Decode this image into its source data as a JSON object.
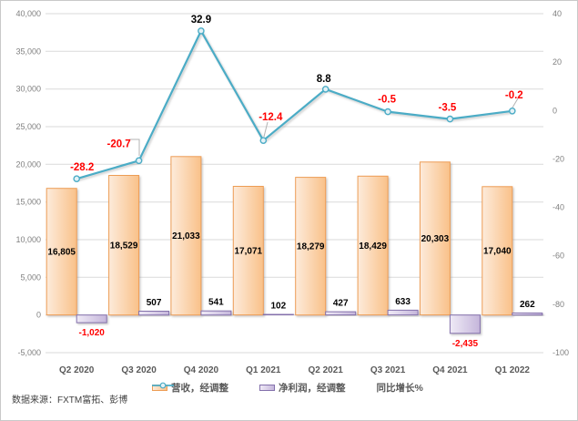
{
  "source": {
    "text": "数据来源：FXTM富拓、彭博"
  },
  "chart_data": {
    "type": "combo",
    "categories": [
      "Q2 2020",
      "Q3 2020",
      "Q4 2020",
      "Q1 2021",
      "Q2 2021",
      "Q3 2021",
      "Q4 2021",
      "Q1 2022"
    ],
    "series": [
      {
        "key": "revenue",
        "name": "营收，经调整",
        "type": "bar",
        "axis": "left",
        "values": [
          16805,
          18529,
          21033,
          17071,
          18279,
          18429,
          20303,
          17040
        ],
        "labels": [
          "16,805",
          "18,529",
          "21,033",
          "17,071",
          "18,279",
          "18,429",
          "20,303",
          "17,040"
        ],
        "fill_from": "#FDEBDB",
        "fill_to": "#F9C189",
        "border": "#ED9D55",
        "label_color": "#000000"
      },
      {
        "key": "net-profit",
        "name": "净利润，经调整",
        "type": "bar",
        "axis": "left",
        "values": [
          -1020,
          507,
          541,
          102,
          427,
          633,
          -2435,
          262
        ],
        "labels": [
          "-1,020",
          "507",
          "541",
          "102",
          "427",
          "633",
          "-2,435",
          "262"
        ],
        "fill_from": "#EFEAF6",
        "fill_to": "#C5B6DB",
        "border": "#8471AC",
        "label_color_positive": "#000000",
        "label_color_negative": "#FF0000"
      },
      {
        "key": "yoy-growth",
        "name": "同比增长%",
        "type": "line",
        "axis": "right",
        "values": [
          -28.2,
          -20.7,
          32.9,
          -12.4,
          8.8,
          -0.5,
          -3.5,
          -0.2
        ],
        "labels": [
          "-28.2",
          "-20.7",
          "32.9",
          "-12.4",
          "8.8",
          "-0.5",
          "-3.5",
          "-0.2"
        ],
        "color": "#4BACC6",
        "marker_fill": "#E3F1F6",
        "label_color_positive": "#000000",
        "label_color_negative": "#FF0000"
      }
    ],
    "left_axis": {
      "max": 40000,
      "min": -5000,
      "step": 5000,
      "ticks": [
        "40,000",
        "35,000",
        "30,000",
        "25,000",
        "20,000",
        "15,000",
        "10,000",
        "5,000",
        "0",
        "-5,000"
      ],
      "color": "#808080"
    },
    "right_axis": {
      "max": 40,
      "min": -100,
      "step": 20,
      "ticks": [
        "40",
        "20",
        "0",
        "-20",
        "-40",
        "-60",
        "-80",
        "-100"
      ],
      "color": "#808080"
    },
    "grid": true,
    "gridline_color": "#DADADA",
    "category_label_color": "#595959",
    "legend_position": "bottom"
  }
}
